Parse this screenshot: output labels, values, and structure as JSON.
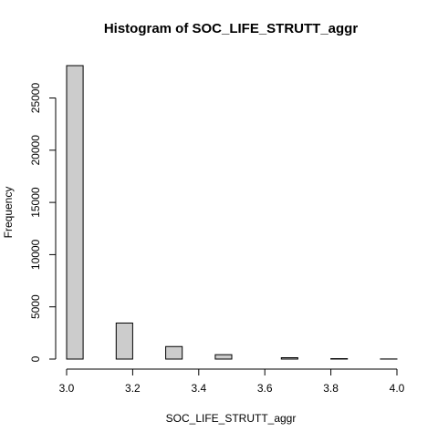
{
  "chart_data": {
    "type": "bar",
    "title": "Histogram of SOC_LIFE_STRUTT_aggr",
    "xlabel": "SOC_LIFE_STRUTT_aggr",
    "ylabel": "Frequency",
    "xlim": [
      3.0,
      4.0
    ],
    "ylim": [
      0,
      28100
    ],
    "x_ticks": [
      3.0,
      3.2,
      3.4,
      3.6,
      3.8,
      4.0
    ],
    "x_tick_labels": [
      "3.0",
      "3.2",
      "3.4",
      "3.6",
      "3.8",
      "4.0"
    ],
    "y_ticks": [
      0,
      5000,
      10000,
      15000,
      20000,
      25000
    ],
    "y_tick_labels": [
      "0",
      "5000",
      "10000",
      "15000",
      "20000",
      "25000"
    ],
    "grid": false,
    "bar_color": "#cccccc",
    "bins": [
      {
        "start": 3.0,
        "end": 3.05,
        "value": 28100
      },
      {
        "start": 3.05,
        "end": 3.1,
        "value": 0
      },
      {
        "start": 3.1,
        "end": 3.15,
        "value": 0
      },
      {
        "start": 3.15,
        "end": 3.2,
        "value": 3450
      },
      {
        "start": 3.2,
        "end": 3.25,
        "value": 0
      },
      {
        "start": 3.25,
        "end": 3.3,
        "value": 0
      },
      {
        "start": 3.3,
        "end": 3.35,
        "value": 1200
      },
      {
        "start": 3.35,
        "end": 3.4,
        "value": 0
      },
      {
        "start": 3.4,
        "end": 3.45,
        "value": 0
      },
      {
        "start": 3.45,
        "end": 3.5,
        "value": 420
      },
      {
        "start": 3.5,
        "end": 3.55,
        "value": 0
      },
      {
        "start": 3.55,
        "end": 3.6,
        "value": 0
      },
      {
        "start": 3.6,
        "end": 3.65,
        "value": 0
      },
      {
        "start": 3.65,
        "end": 3.7,
        "value": 130
      },
      {
        "start": 3.7,
        "end": 3.75,
        "value": 0
      },
      {
        "start": 3.75,
        "end": 3.8,
        "value": 0
      },
      {
        "start": 3.8,
        "end": 3.85,
        "value": 40
      },
      {
        "start": 3.85,
        "end": 3.9,
        "value": 0
      },
      {
        "start": 3.9,
        "end": 3.95,
        "value": 0
      },
      {
        "start": 3.95,
        "end": 4.0,
        "value": 10
      }
    ]
  }
}
